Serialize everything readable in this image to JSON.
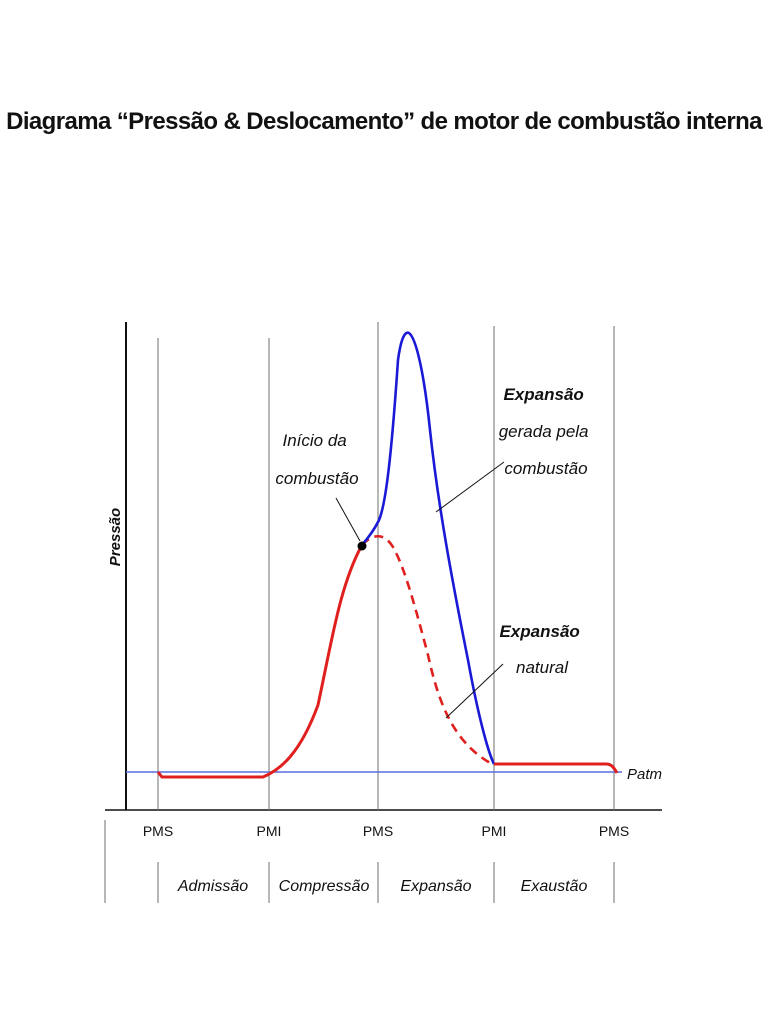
{
  "title": "Diagrama “Pressão & Deslocamento” de motor de combustão interna",
  "y_axis_label": "Pressão",
  "strokes": [
    {
      "label": "PMS"
    },
    {
      "label": "PMI"
    },
    {
      "label": "PMS"
    },
    {
      "label": "PMI"
    },
    {
      "label": "PMS"
    }
  ],
  "phases": [
    "Admissão",
    "Compressão",
    "Expansão",
    "Exaustão"
  ],
  "reference_line": "Patm",
  "annotations": {
    "combustion_start": [
      "Início da",
      "combustão"
    ],
    "combustion_expansion": [
      "Expansão",
      "gerada pela",
      "combustão"
    ],
    "natural_expansion": [
      "Expansão",
      "natural"
    ]
  },
  "colors": {
    "compression_curve": "#e0201e",
    "combustion_curve": "#1a1ad6",
    "patm_line": "#5a6fe0",
    "grid": "#6f6f6f"
  }
}
